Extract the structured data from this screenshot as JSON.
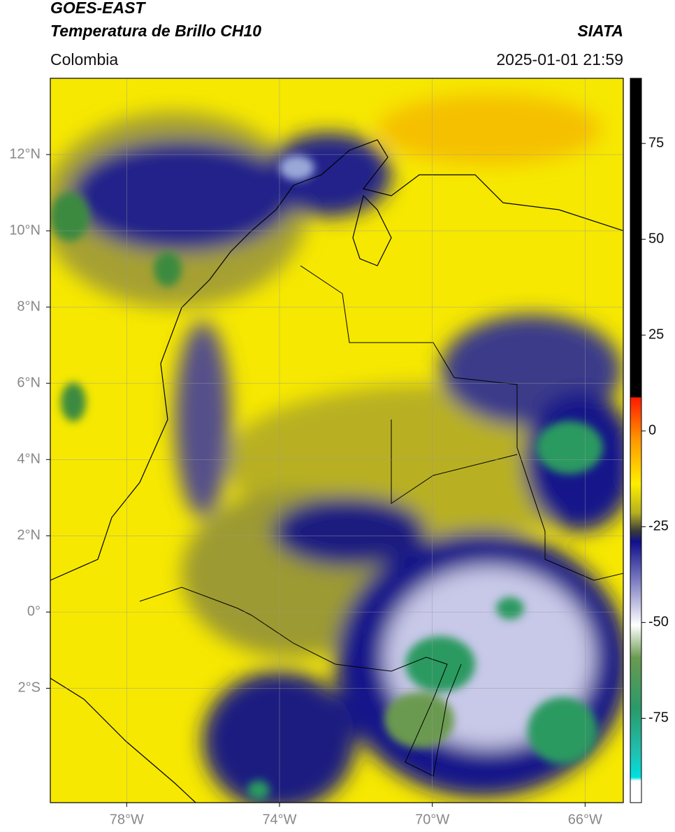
{
  "header": {
    "title": "GOES-EAST",
    "subtitle": "Temperatura de Brillo CH10",
    "source": "SIATA",
    "region": "Colombia",
    "datetime": "2025-01-01 21:59"
  },
  "map": {
    "lon_range": [
      -80,
      -65
    ],
    "lat_range": [
      -5,
      14
    ],
    "lon_ticks": [
      {
        "value": -78,
        "label": "78°W"
      },
      {
        "value": -74,
        "label": "74°W"
      },
      {
        "value": -70,
        "label": "70°W"
      },
      {
        "value": -66,
        "label": "66°W"
      }
    ],
    "lat_ticks": [
      {
        "value": 12,
        "label": "12°N"
      },
      {
        "value": 10,
        "label": "10°N"
      },
      {
        "value": 8,
        "label": "8°N"
      },
      {
        "value": 6,
        "label": "6°N"
      },
      {
        "value": 4,
        "label": "4°N"
      },
      {
        "value": 2,
        "label": "2°N"
      },
      {
        "value": 0,
        "label": "0°"
      },
      {
        "value": -2,
        "label": "2°S"
      }
    ]
  },
  "colorbar": {
    "range": [
      -97,
      92
    ],
    "ticks": [
      75,
      50,
      25,
      0,
      -25,
      -50,
      -75
    ]
  }
}
